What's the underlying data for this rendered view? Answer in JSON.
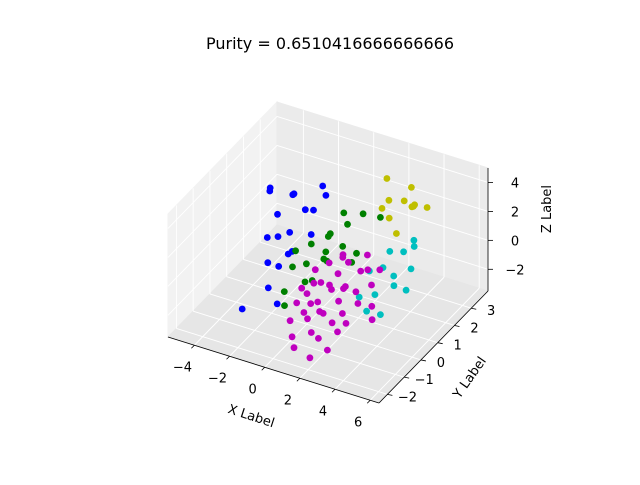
{
  "chart_data": {
    "type": "scatter",
    "projection": "3d",
    "title": "Purity = 0.6510416666666666",
    "xlabel": "X Label",
    "ylabel": "Y Label",
    "zlabel": "Z Label",
    "grid": true,
    "xlim": [
      -5.5,
      6.5
    ],
    "ylim": [
      -2.5,
      4
    ],
    "zlim": [
      -3.5,
      5
    ],
    "x_ticks": [
      -4,
      -2,
      0,
      2,
      4,
      6
    ],
    "y_ticks": [
      -2,
      -1,
      0,
      1,
      2,
      3
    ],
    "z_ticks": [
      -2,
      0,
      2,
      4
    ],
    "series": [
      {
        "name": "cluster-blue",
        "color": "#0000ff",
        "points": [
          [
            -4,
            2,
            1.8
          ],
          [
            -3.5,
            1.5,
            2.8
          ],
          [
            -3.2,
            2.6,
            1.2
          ],
          [
            -2.8,
            1.2,
            1.6
          ],
          [
            -3,
            0.8,
            0.4
          ],
          [
            -2.6,
            1.9,
            2.2
          ],
          [
            -2.2,
            0.6,
            1.0
          ],
          [
            -1.9,
            2.4,
            0.8
          ],
          [
            -2.4,
            0.2,
            -0.4
          ],
          [
            -1.6,
            1.6,
            1.9
          ],
          [
            -1.2,
            0.4,
            0.6
          ],
          [
            -1.8,
            -0.4,
            -1.2
          ],
          [
            -0.8,
            1.8,
            3.6
          ],
          [
            -2.9,
            -0.8,
            -2.6
          ],
          [
            -1,
            2.2,
            2.4
          ],
          [
            -2,
            1,
            -0.6
          ],
          [
            -1.4,
            -0.2,
            0.2
          ],
          [
            -0.6,
            0.9,
            1.4
          ],
          [
            -2.3,
            1.4,
            0.3
          ],
          [
            -1.1,
            -0.6,
            -1.8
          ]
        ]
      },
      {
        "name": "cluster-green",
        "color": "#008000",
        "points": [
          [
            -0.5,
            0.8,
            0.9
          ],
          [
            0.2,
            1.2,
            1.4
          ],
          [
            -0.3,
            0.3,
            0.2
          ],
          [
            0.8,
            1.6,
            1.8
          ],
          [
            0.5,
            0.5,
            0.6
          ],
          [
            -0.9,
            0.1,
            0.0
          ],
          [
            0.1,
            -0.2,
            -0.3
          ],
          [
            1.1,
            1.0,
            1.1
          ],
          [
            -0.2,
            1.5,
            0.7
          ],
          [
            0.6,
            -0.3,
            0.1
          ],
          [
            1.4,
            1.9,
            2.4
          ],
          [
            -0.7,
            -0.6,
            -0.8
          ],
          [
            0.3,
            0.9,
            -0.1
          ],
          [
            1.8,
            0.8,
            0.5
          ],
          [
            0.9,
            0.2,
            1.6
          ],
          [
            -1.2,
            0.6,
            0.4
          ],
          [
            0.4,
            1.8,
            2.2
          ],
          [
            1.5,
            1.4,
            0.3
          ],
          [
            -0.4,
            -0.9,
            -1.3
          ],
          [
            2.0,
            2.3,
            1.9
          ]
        ]
      },
      {
        "name": "cluster-yellow",
        "color": "#bfbf00",
        "points": [
          [
            2.2,
            2.6,
            2.8
          ],
          [
            3.0,
            3.1,
            3.4
          ],
          [
            2.6,
            2.2,
            2.2
          ],
          [
            3.4,
            2.8,
            2.6
          ],
          [
            1.8,
            2.9,
            3.8
          ],
          [
            2.9,
            3.4,
            1.8
          ],
          [
            3.6,
            2.5,
            3.0
          ],
          [
            2.4,
            3.3,
            2.0
          ],
          [
            3.2,
            2.0,
            1.6
          ],
          [
            2.0,
            2.4,
            2.4
          ],
          [
            3.8,
            3.2,
            2.2
          ]
        ]
      },
      {
        "name": "cluster-cyan",
        "color": "#00bfbf",
        "points": [
          [
            3.2,
            1.2,
            0.2
          ],
          [
            3.8,
            1.8,
            0.8
          ],
          [
            4.2,
            0.8,
            -0.2
          ],
          [
            3.5,
            0.4,
            -0.6
          ],
          [
            4.6,
            1.4,
            0.4
          ],
          [
            3.0,
            0.6,
            0.6
          ],
          [
            4.0,
            2.2,
            1.2
          ],
          [
            3.6,
            -0.2,
            -1.0
          ],
          [
            4.8,
            0.9,
            -0.4
          ],
          [
            2.8,
            0.2,
            -0.8
          ],
          [
            4.4,
            1.8,
            1.4
          ],
          [
            3.3,
            1.5,
            1.0
          ],
          [
            4.1,
            0.1,
            -1.4
          ],
          [
            3.9,
            1.1,
            0.0
          ]
        ]
      },
      {
        "name": "cluster-magenta",
        "color": "#bf00bf",
        "points": [
          [
            0.5,
            -0.5,
            -0.6
          ],
          [
            1.0,
            -0.2,
            0.0
          ],
          [
            1.5,
            0.3,
            0.2
          ],
          [
            0.8,
            -1.0,
            -1.2
          ],
          [
            2.0,
            0.1,
            -0.4
          ],
          [
            1.2,
            -0.6,
            -0.8
          ],
          [
            2.5,
            0.6,
            0.4
          ],
          [
            0.3,
            -1.3,
            -1.6
          ],
          [
            1.8,
            -0.9,
            -1.0
          ],
          [
            2.8,
            0.0,
            -0.2
          ],
          [
            0.9,
            0.4,
            0.6
          ],
          [
            2.2,
            -0.4,
            -0.6
          ],
          [
            1.6,
            -1.4,
            -1.8
          ],
          [
            3.0,
            0.5,
            0.8
          ],
          [
            0.6,
            -0.2,
            -0.2
          ],
          [
            2.4,
            -1.0,
            -1.3
          ],
          [
            1.3,
            0.0,
            -0.3
          ],
          [
            3.2,
            -0.3,
            -0.5
          ],
          [
            0.2,
            -0.8,
            -1.0
          ],
          [
            2.7,
            -0.7,
            -0.9
          ],
          [
            1.9,
            0.5,
            0.9
          ],
          [
            1.1,
            -1.1,
            -1.4
          ],
          [
            3.5,
            0.2,
            0.3
          ],
          [
            0.7,
            -1.6,
            -2.2
          ],
          [
            2.1,
            -1.5,
            -1.9
          ],
          [
            1.4,
            0.7,
            1.0
          ],
          [
            2.9,
            -1.2,
            -1.5
          ],
          [
            0.4,
            0.1,
            0.3
          ],
          [
            1.7,
            -0.3,
            -0.1
          ],
          [
            2.6,
            0.9,
            1.2
          ],
          [
            3.8,
            -0.1,
            -0.7
          ],
          [
            0.1,
            -0.4,
            -0.5
          ],
          [
            1.0,
            -1.8,
            -2.6
          ],
          [
            2.3,
            -0.1,
            0.1
          ],
          [
            1.5,
            -0.8,
            -1.1
          ],
          [
            3.1,
            -0.9,
            -1.2
          ],
          [
            2.0,
            -1.9,
            -2.8
          ],
          [
            4.2,
            -0.5,
            -1.0
          ],
          [
            1.2,
            0.9,
            0.5
          ],
          [
            3.4,
            0.8,
            0.6
          ],
          [
            2.8,
            -1.7,
            -2.2
          ],
          [
            0.9,
            -0.7,
            -0.9
          ]
        ]
      }
    ]
  }
}
